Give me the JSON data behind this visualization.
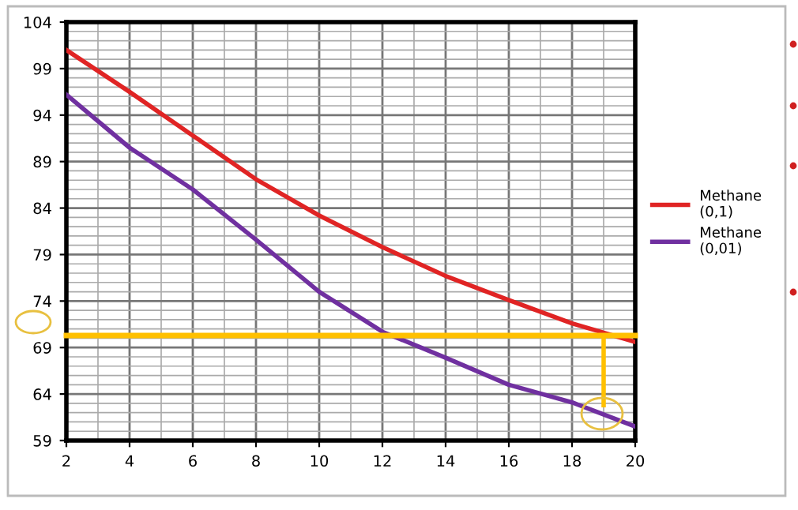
{
  "chart_data": {
    "type": "line",
    "x": [
      2,
      4,
      6,
      8,
      10,
      12,
      14,
      16,
      18,
      20
    ],
    "series": [
      {
        "name": "Methane\n(0,1)",
        "color": "#e02424",
        "values": [
          101,
          96.5,
          91.8,
          87.1,
          83.2,
          79.8,
          76.7,
          74.1,
          71.6,
          69.6
        ]
      },
      {
        "name": "Methane\n(0,01)",
        "color": "#7030a0",
        "values": [
          96.2,
          90.5,
          86,
          80.6,
          75,
          70.7,
          67.9,
          65,
          63.1,
          60.5
        ]
      },
      {
        "color": "#ffc000",
        "x": [
          19,
          19
        ],
        "values": [
          70.3,
          62.8
        ]
      }
    ],
    "ref_lines": [
      {
        "axis": "y",
        "value": 70.3,
        "color": "#ffc000"
      }
    ],
    "xlim": [
      2,
      20
    ],
    "xticks": [
      2,
      4,
      6,
      8,
      10,
      12,
      14,
      16,
      18,
      20
    ],
    "ylim": [
      59,
      104
    ],
    "yticks": [
      59,
      64,
      69,
      74,
      79,
      84,
      89,
      94,
      99,
      104
    ],
    "grid": true,
    "legend": "right",
    "marker": "none",
    "line_style": "solid"
  }
}
